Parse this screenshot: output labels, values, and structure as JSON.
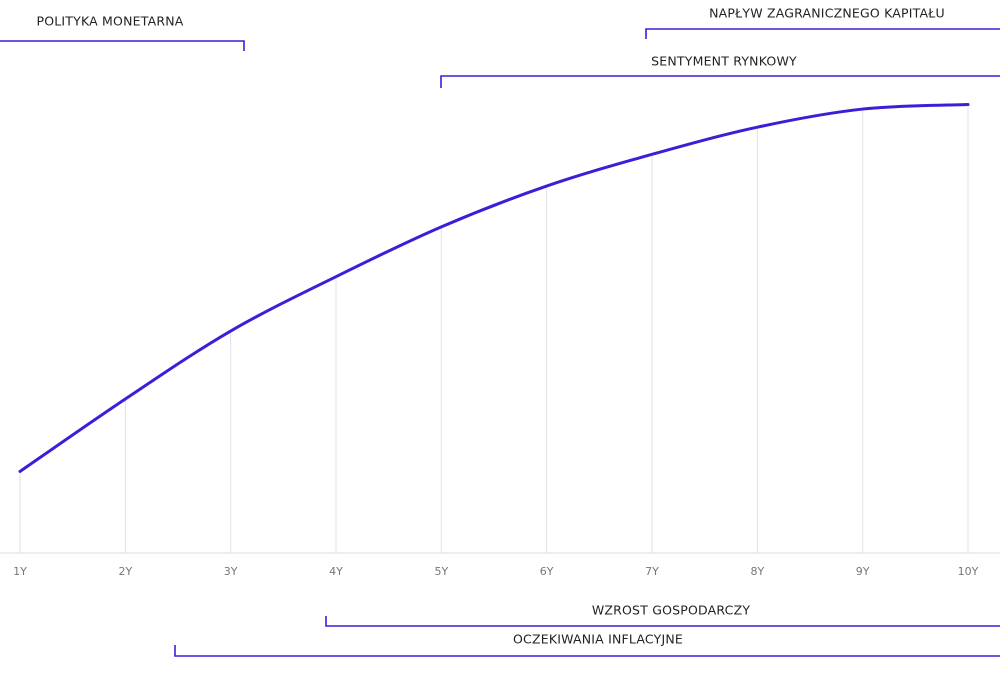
{
  "chart_data": {
    "type": "line",
    "categories": [
      "1Y",
      "2Y",
      "3Y",
      "4Y",
      "5Y",
      "6Y",
      "7Y",
      "8Y",
      "9Y",
      "10Y"
    ],
    "values": [
      18,
      34,
      49,
      61,
      72,
      81,
      88,
      94,
      98,
      99
    ],
    "color": "#3a1fd8",
    "ylim": [
      0,
      100
    ],
    "annotations": [
      "POLITYKA MONETARNA",
      "NAPŁYW ZAGRANICZNEGO KAPITAŁU",
      "SENTYMENT RYNKOWY",
      "WZROST GOSPODARCZY",
      "OCZEKIWANIA INFLACYJNE"
    ]
  }
}
